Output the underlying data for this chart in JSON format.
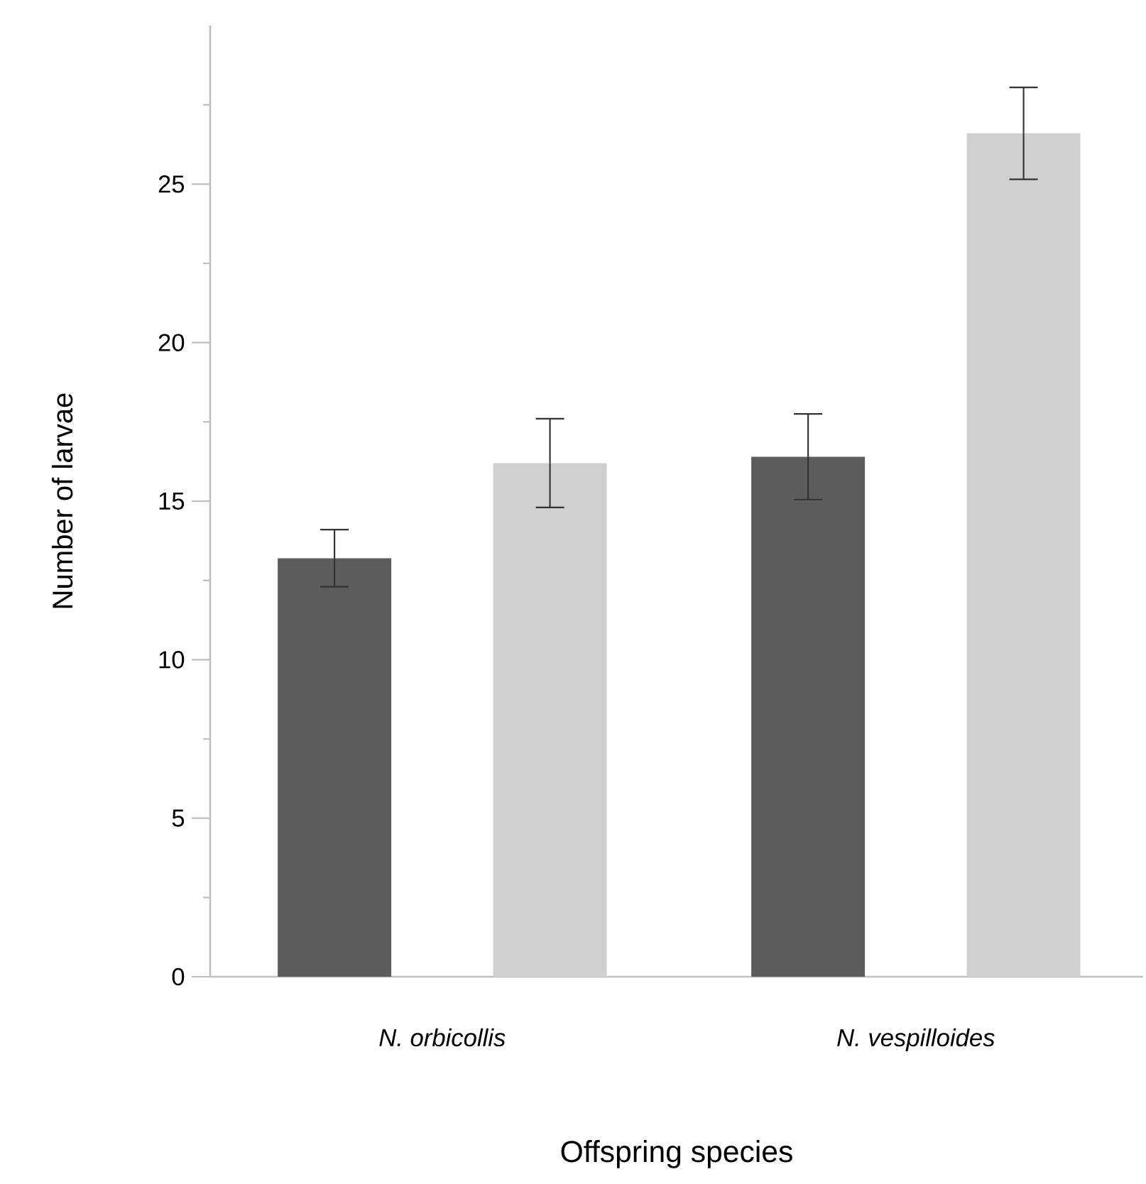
{
  "chart_data": {
    "type": "bar",
    "xlabel": "Offspring species",
    "ylabel": "Number of larvae",
    "categories": [
      "N. orbicollis",
      "N. vespilloides"
    ],
    "series": [
      {
        "color": "#5c5c5c",
        "values": [
          13.2,
          16.4
        ],
        "errors": [
          0.9,
          1.35
        ]
      },
      {
        "color": "#d0d0d0",
        "values": [
          16.2,
          26.6
        ],
        "errors": [
          1.4,
          1.45
        ]
      }
    ],
    "ylim": [
      0,
      30
    ],
    "yticks": [
      0,
      {
        "value": 2.5,
        "label": null
      },
      5,
      {
        "value": 7.5,
        "label": null
      },
      10,
      {
        "value": 12.5,
        "label": null
      },
      15,
      {
        "value": 17.5,
        "label": null
      },
      20,
      {
        "value": 22.5,
        "label": null
      },
      25,
      {
        "value": 27.5,
        "label": null
      }
    ]
  }
}
